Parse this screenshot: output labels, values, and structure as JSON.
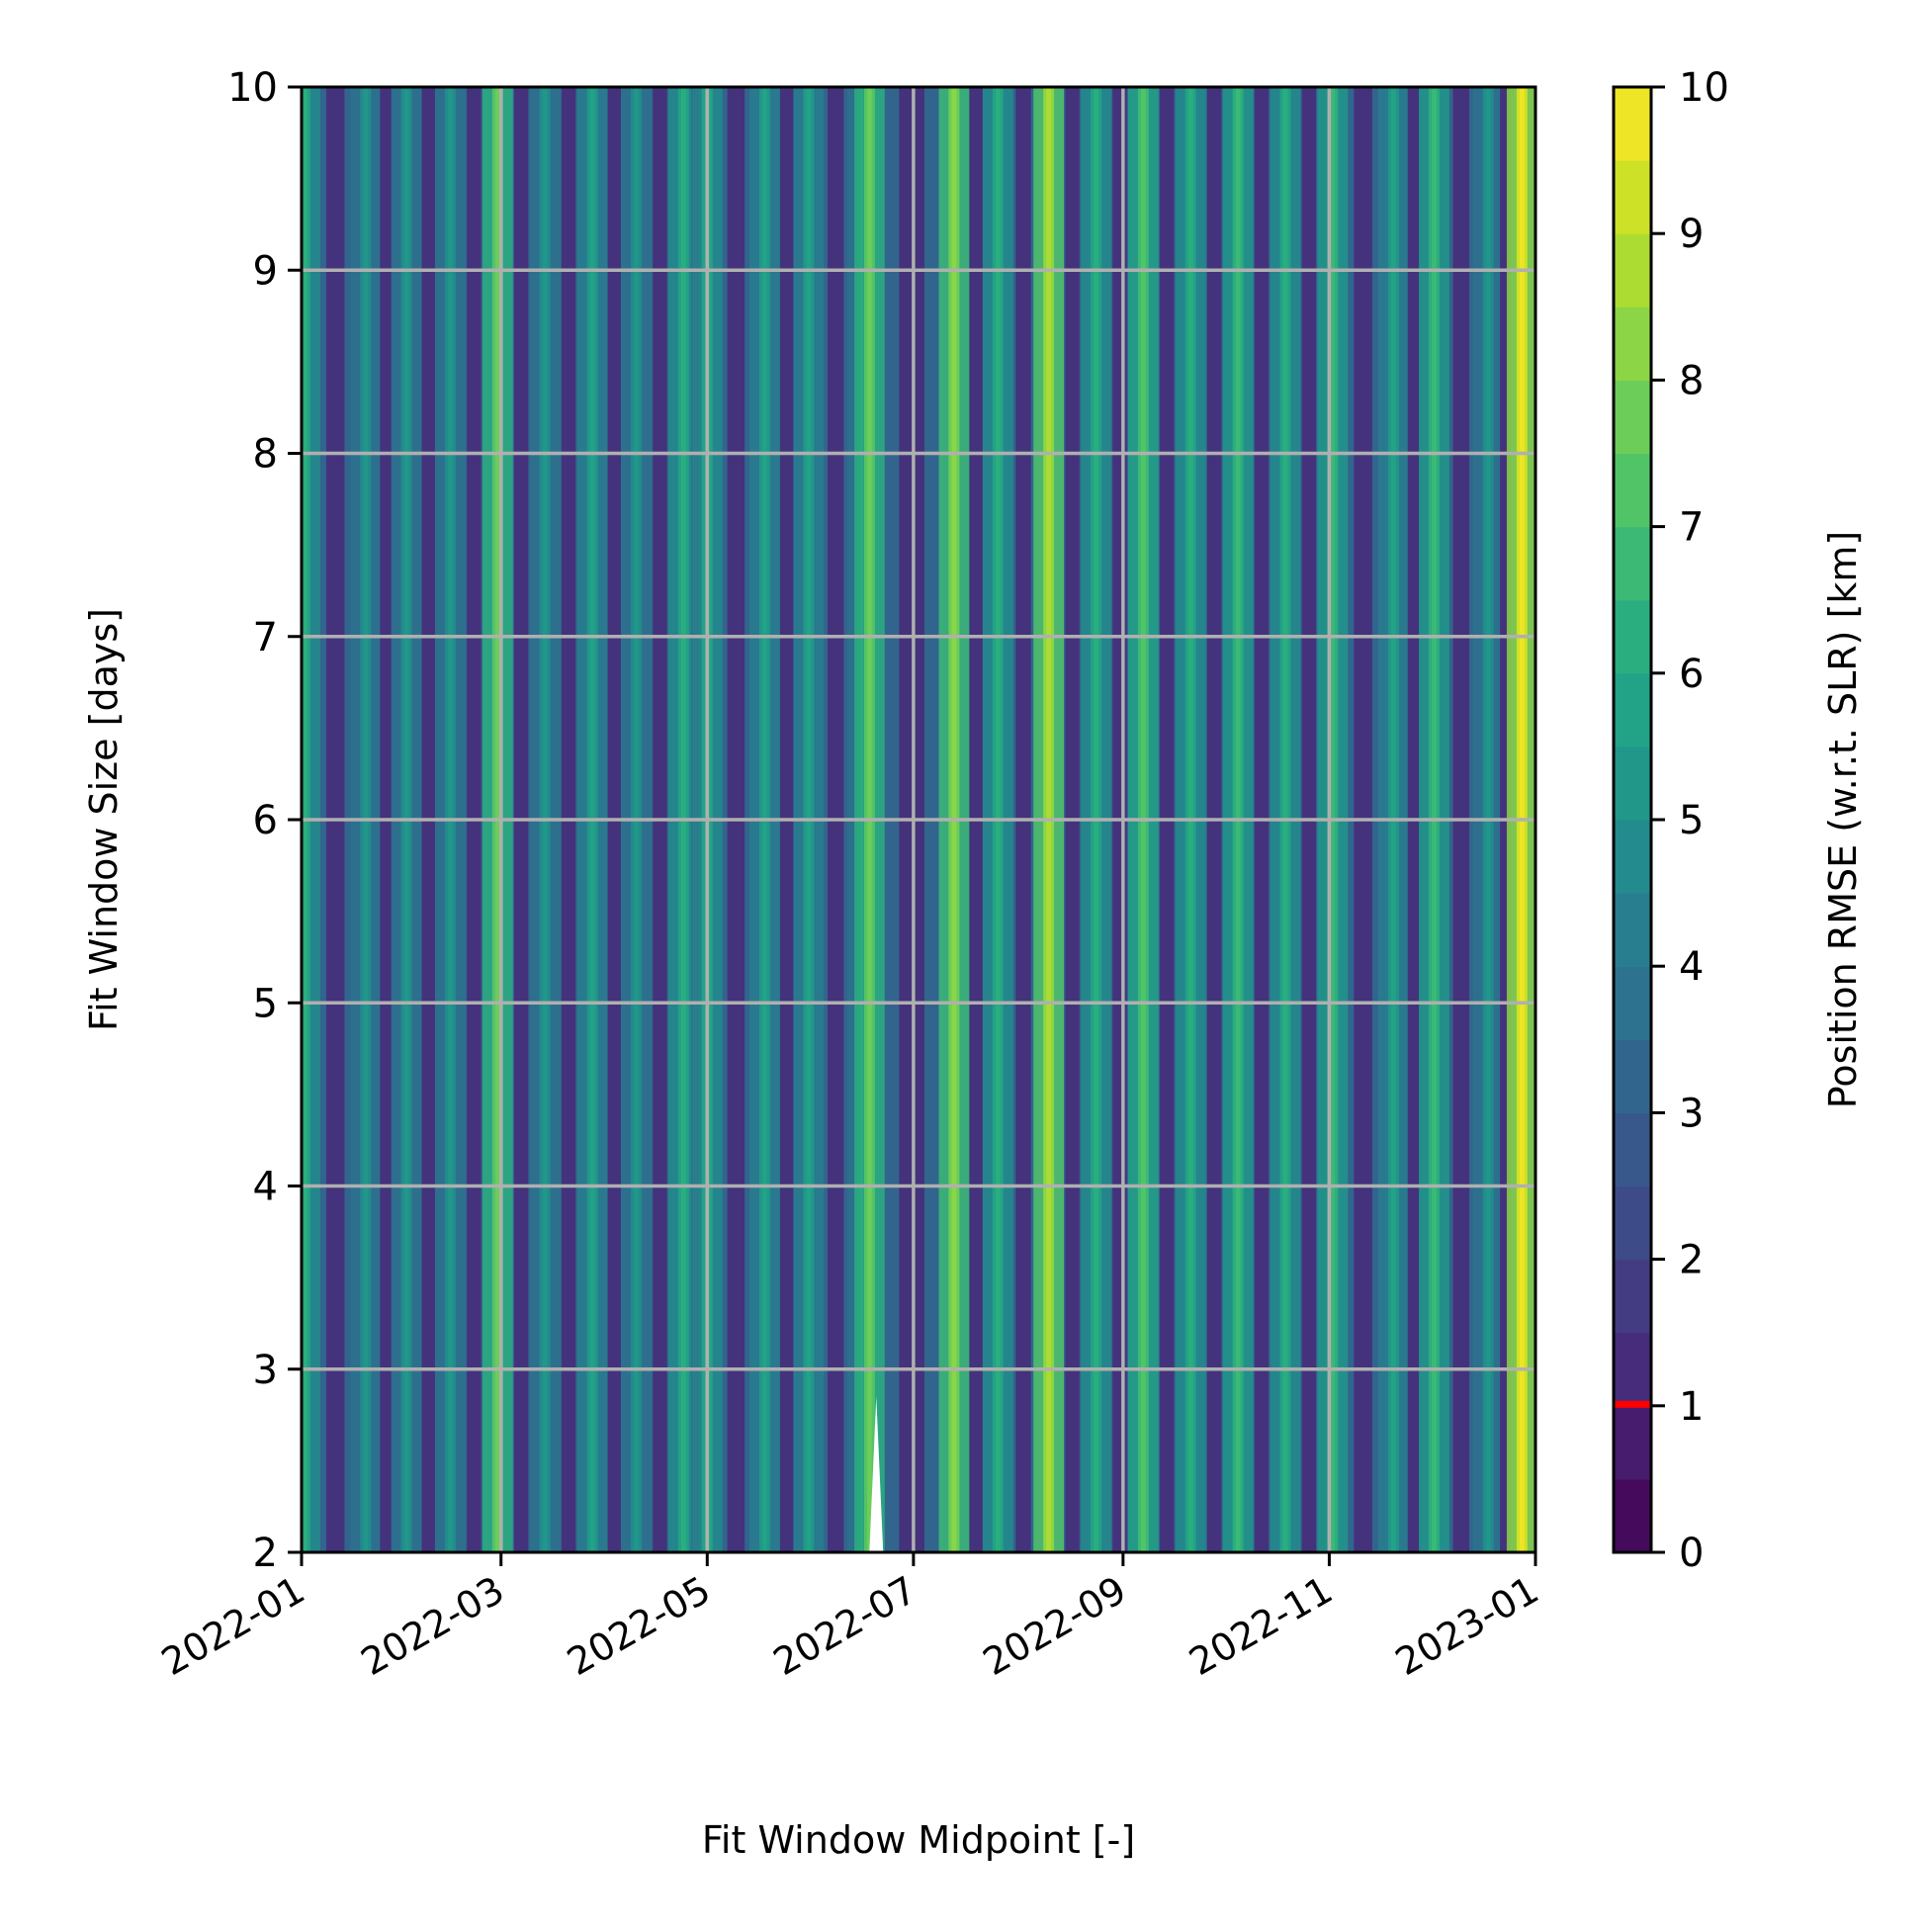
{
  "chart_data": {
    "type": "heatmap",
    "title": "",
    "xlabel": "Fit Window Midpoint [-]",
    "ylabel": "Fit Window Size [days]",
    "colorbar_label": "Position RMSE (w.r.t. SLR) [km]",
    "x_range": [
      "2022-01-01",
      "2023-01-01"
    ],
    "x_ticks": [
      "2022-01",
      "2022-03",
      "2022-05",
      "2022-07",
      "2022-09",
      "2022-11",
      "2023-01"
    ],
    "x_tick_dates": [
      "2022-01-01",
      "2022-03-01",
      "2022-05-01",
      "2022-07-01",
      "2022-09-01",
      "2022-11-01",
      "2023-01-01"
    ],
    "ylim": [
      2,
      10
    ],
    "y_ticks": [
      2,
      3,
      4,
      5,
      6,
      7,
      8,
      9,
      10
    ],
    "colorbar_range": [
      0,
      10
    ],
    "colorbar_ticks": [
      0,
      1,
      2,
      3,
      4,
      5,
      6,
      7,
      8,
      9,
      10
    ],
    "colorbar_levels": 20,
    "colormap": "viridis",
    "colorbar_marker": {
      "value": 1,
      "color": "#ff0000"
    },
    "grid": true,
    "grid_color": "#b0b0b0",
    "missing_region": {
      "x_center": "2022-06-20",
      "y_from": 2,
      "y_to": 2.85,
      "color": "#ffffff"
    },
    "bright_bands": [
      {
        "date": "2022-01-02",
        "value": 6.0
      },
      {
        "date": "2022-01-20",
        "value": 5.2
      },
      {
        "date": "2022-02-01",
        "value": 5.4
      },
      {
        "date": "2022-02-14",
        "value": 5.0
      },
      {
        "date": "2022-02-28",
        "value": 7.6
      },
      {
        "date": "2022-03-14",
        "value": 5.0
      },
      {
        "date": "2022-03-28",
        "value": 5.6
      },
      {
        "date": "2022-04-10",
        "value": 5.2
      },
      {
        "date": "2022-04-24",
        "value": 6.2
      },
      {
        "date": "2022-05-01",
        "value": 6.4
      },
      {
        "date": "2022-05-18",
        "value": 5.6
      },
      {
        "date": "2022-05-31",
        "value": 5.8
      },
      {
        "date": "2022-06-16",
        "value": 5.2
      },
      {
        "date": "2022-06-18",
        "value": 7.8
      },
      {
        "date": "2022-07-13",
        "value": 8.2
      },
      {
        "date": "2022-07-26",
        "value": 6.0
      },
      {
        "date": "2022-08-10",
        "value": 8.8
      },
      {
        "date": "2022-08-24",
        "value": 6.0
      },
      {
        "date": "2022-09-07",
        "value": 7.4
      },
      {
        "date": "2022-09-21",
        "value": 6.2
      },
      {
        "date": "2022-10-05",
        "value": 6.6
      },
      {
        "date": "2022-10-19",
        "value": 6.0
      },
      {
        "date": "2022-11-02",
        "value": 6.6
      },
      {
        "date": "2022-11-20",
        "value": 5.8
      },
      {
        "date": "2022-12-02",
        "value": 6.6
      },
      {
        "date": "2022-12-18",
        "value": 5.0
      },
      {
        "date": "2022-12-28",
        "value": 9.6
      }
    ]
  }
}
